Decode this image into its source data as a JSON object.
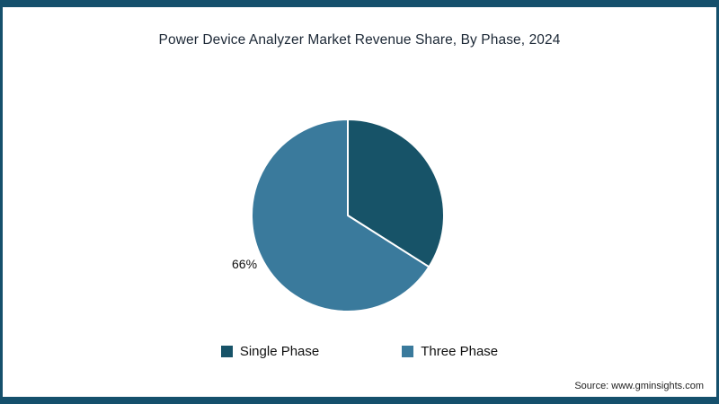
{
  "frame_color": "#15506c",
  "title": "Power Device Analyzer Market Revenue Share, By Phase, 2024",
  "source": "Source: www.gminsights.com",
  "chart_data": {
    "type": "pie",
    "title": "Power Device Analyzer Market Revenue Share, By Phase, 2024",
    "slices": [
      {
        "label": "Single Phase",
        "value": 34,
        "color": "#175368"
      },
      {
        "label": "Three Phase",
        "value": 66,
        "color": "#3a7a9c"
      }
    ],
    "start_angle": "top",
    "direction": "clockwise",
    "data_label": {
      "text": "66%",
      "slice": "Three Phase"
    },
    "legend_position": "bottom",
    "stroke_color": "#ffffff"
  }
}
